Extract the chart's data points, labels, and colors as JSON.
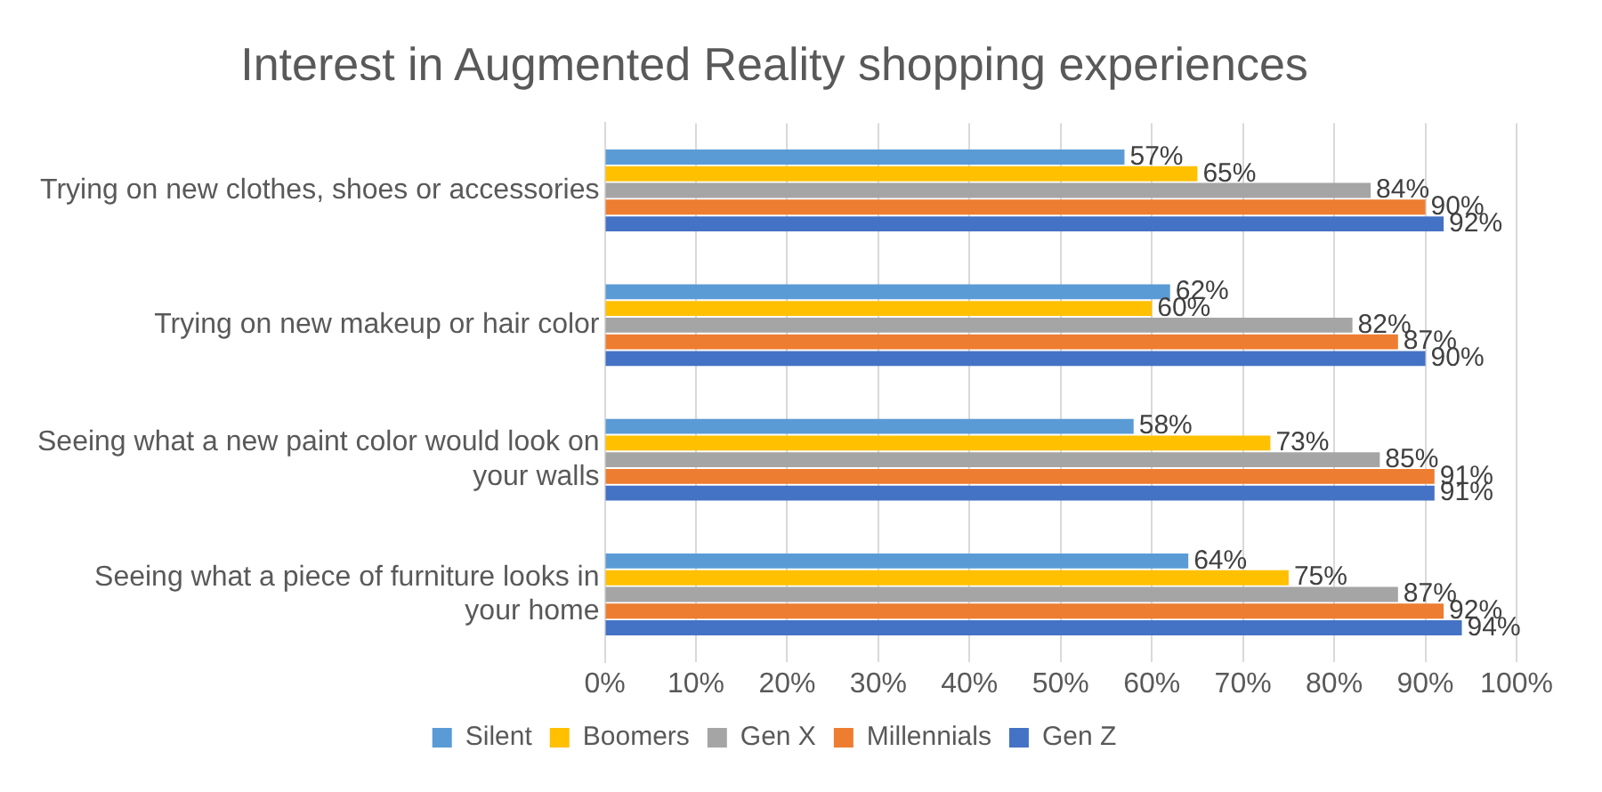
{
  "chart_data": {
    "type": "bar",
    "orientation": "horizontal",
    "title": "Interest in Augmented Reality shopping experiences",
    "categories": [
      "Trying on new clothes, shoes or accessories",
      "Trying on new makeup or hair color",
      "Seeing what a new paint color would look on your walls",
      "Seeing what a piece of furniture looks in your home"
    ],
    "series": [
      {
        "name": "Silent",
        "color": "#5b9bd5",
        "values": [
          57,
          62,
          58,
          64
        ],
        "value_labels": [
          "57%",
          "62%",
          "58%",
          "64%"
        ]
      },
      {
        "name": "Boomers",
        "color": "#ffc000",
        "values": [
          65,
          60,
          73,
          75
        ],
        "value_labels": [
          "65%",
          "60%",
          "73%",
          "75%"
        ]
      },
      {
        "name": "Gen X",
        "color": "#a5a5a5",
        "values": [
          84,
          82,
          85,
          87
        ],
        "value_labels": [
          "84%",
          "82%",
          "85%",
          "87%"
        ]
      },
      {
        "name": "Millennials",
        "color": "#ed7d31",
        "values": [
          90,
          87,
          91,
          92
        ],
        "value_labels": [
          "90%",
          "87%",
          "91%",
          "92%"
        ]
      },
      {
        "name": "Gen Z",
        "color": "#4472c4",
        "values": [
          92,
          90,
          91,
          94
        ],
        "value_labels": [
          "92%",
          "90%",
          "91%",
          "94%"
        ]
      }
    ],
    "xlim": [
      0,
      100
    ],
    "xticks": [
      {
        "value": 0,
        "label": "0%"
      },
      {
        "value": 10,
        "label": "10%"
      },
      {
        "value": 20,
        "label": "20%"
      },
      {
        "value": 30,
        "label": "30%"
      },
      {
        "value": 40,
        "label": "40%"
      },
      {
        "value": 50,
        "label": "50%"
      },
      {
        "value": 60,
        "label": "60%"
      },
      {
        "value": 70,
        "label": "70%"
      },
      {
        "value": 80,
        "label": "80%"
      },
      {
        "value": 90,
        "label": "90%"
      },
      {
        "value": 100,
        "label": "100%"
      }
    ],
    "grid": "x",
    "legend": "bottom"
  }
}
